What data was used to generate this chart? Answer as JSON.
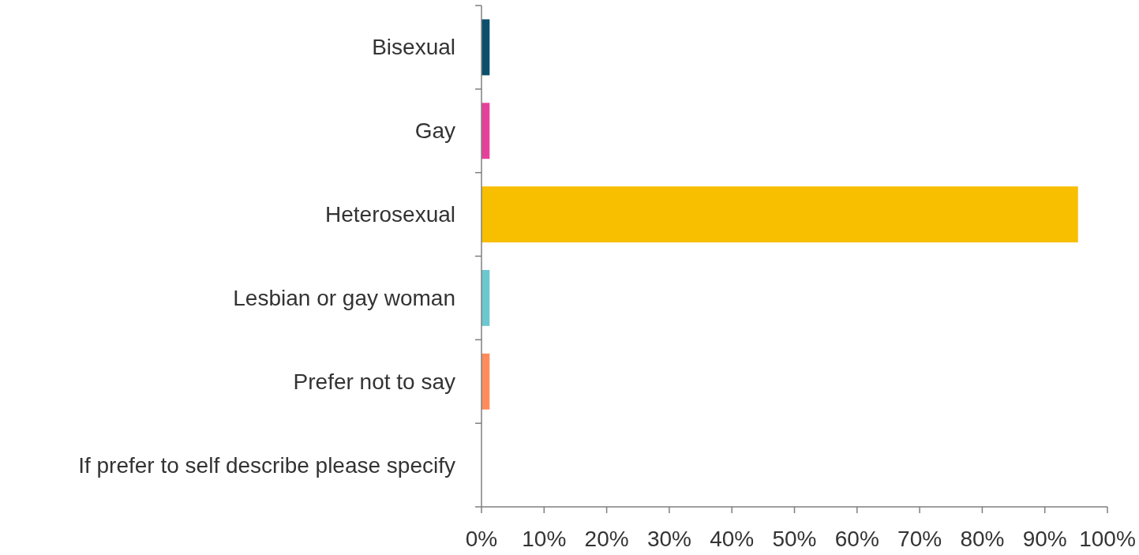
{
  "chart_data": {
    "type": "bar",
    "orientation": "horizontal",
    "categories": [
      "Bisexual",
      "Gay",
      "Heterosexual",
      "Lesbian or gay woman",
      "Prefer not to say",
      "If prefer to self describe please specify"
    ],
    "values": [
      1.3,
      1.3,
      95.3,
      1.3,
      1.3,
      0
    ],
    "colors": [
      "#0b4f6c",
      "#e6419a",
      "#f8be00",
      "#6cc8cf",
      "#ff8c5a",
      "#9e9e9e"
    ],
    "xlim": [
      0,
      100
    ],
    "xticks": [
      {
        "value": 0,
        "label": "0%"
      },
      {
        "value": 10,
        "label": "10%"
      },
      {
        "value": 20,
        "label": "20%"
      },
      {
        "value": 30,
        "label": "30%"
      },
      {
        "value": 40,
        "label": "40%"
      },
      {
        "value": 50,
        "label": "50%"
      },
      {
        "value": 60,
        "label": "60%"
      },
      {
        "value": 70,
        "label": "70%"
      },
      {
        "value": 80,
        "label": "80%"
      },
      {
        "value": 90,
        "label": "90%"
      },
      {
        "value": 100,
        "label": "100%"
      }
    ],
    "grid": false
  }
}
